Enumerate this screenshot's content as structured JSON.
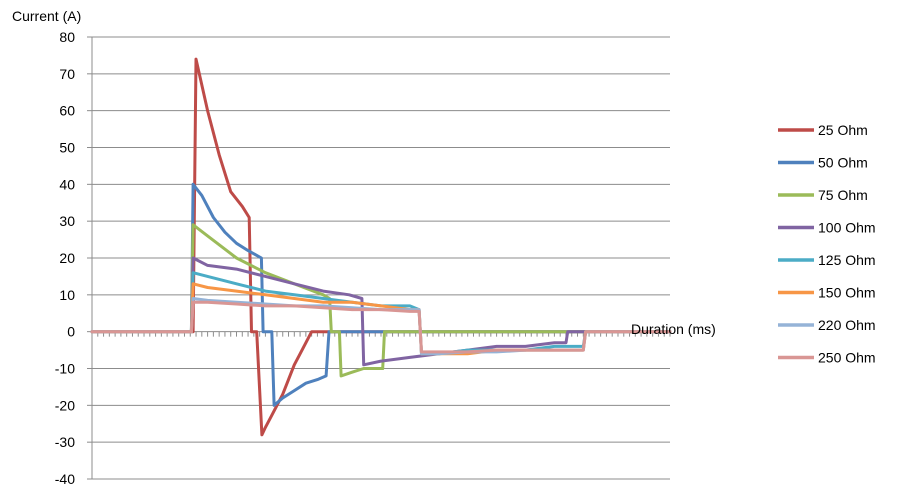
{
  "chart_data": {
    "type": "line",
    "ylabel": "Current (A)",
    "xlabel": "Duration (ms)",
    "xlim": [
      0,
      100
    ],
    "ylim": [
      -40,
      80
    ],
    "yticks": [
      80,
      70,
      60,
      50,
      40,
      30,
      20,
      10,
      0,
      -10,
      -20,
      -30,
      -40
    ],
    "grid": "horizontal",
    "legend": "right",
    "series": [
      {
        "name": "25 Ohm",
        "color": "#BE4B48",
        "x": [
          0,
          16.3,
          17.5,
          18.0,
          20,
          22,
          24,
          26,
          27.2,
          27.6,
          28.5,
          29.4,
          30.0,
          31,
          32,
          33,
          34,
          35,
          36,
          37,
          38,
          100
        ],
        "y": [
          0,
          0,
          0,
          74,
          60,
          48,
          38,
          34,
          31,
          0,
          0,
          -28,
          -26,
          -23,
          -20,
          -17,
          -13,
          -9,
          -6,
          -3,
          0,
          0
        ]
      },
      {
        "name": "50 Ohm",
        "color": "#4F81BD",
        "x": [
          0,
          16.3,
          17.2,
          17.5,
          19,
          21,
          23,
          25,
          27,
          29.3,
          29.6,
          31.1,
          31.5,
          33,
          35,
          37,
          39,
          40.5,
          41.0,
          100
        ],
        "y": [
          0,
          0,
          0,
          40,
          37,
          31,
          27,
          24,
          22,
          20,
          0,
          0,
          -20,
          -18,
          -16,
          -14,
          -13,
          -12,
          0,
          0
        ]
      },
      {
        "name": "75 Ohm",
        "color": "#9BBB59",
        "x": [
          0,
          16.3,
          17.2,
          17.5,
          20,
          25,
          30,
          35,
          40,
          41.1,
          41.4,
          42.8,
          43.1,
          45,
          47,
          49,
          50.3,
          50.6,
          100
        ],
        "y": [
          0,
          0,
          0,
          29,
          26,
          20,
          16,
          13,
          10,
          9,
          0,
          0,
          -12,
          -11,
          -10,
          -10,
          -10,
          0,
          0
        ]
      },
      {
        "name": "100 Ohm",
        "color": "#8064A2",
        "x": [
          0,
          16.3,
          17.2,
          17.5,
          20,
          25,
          30,
          35,
          40,
          44.5,
          46.7,
          47.0,
          50,
          55,
          60,
          65,
          70,
          75,
          80,
          82.0,
          82.3,
          100
        ],
        "y": [
          0,
          0,
          0,
          20,
          18,
          17,
          15,
          13,
          11,
          10,
          9,
          -9,
          -8,
          -7,
          -6,
          -5,
          -4,
          -4,
          -3,
          -3,
          0,
          0
        ]
      },
      {
        "name": "125 Ohm",
        "color": "#4BACC6",
        "x": [
          0,
          16.3,
          17.2,
          17.5,
          20,
          25,
          30,
          35,
          40,
          45,
          50,
          55,
          56.6,
          57.0,
          60,
          65,
          70,
          75,
          80,
          85,
          85.4,
          100
        ],
        "y": [
          0,
          0,
          0,
          16,
          15,
          13,
          11,
          10,
          9,
          8,
          7,
          7,
          6,
          -6,
          -6,
          -5,
          -5,
          -5,
          -4,
          -4,
          0,
          0
        ]
      },
      {
        "name": "150 Ohm",
        "color": "#F79646",
        "x": [
          0,
          16.3,
          17.2,
          17.5,
          20,
          25,
          30,
          35,
          40,
          45,
          50,
          55,
          56.6,
          57.0,
          60,
          65,
          70,
          75,
          80,
          85,
          85.4,
          100
        ],
        "y": [
          0,
          0,
          0,
          13,
          12,
          11,
          10,
          9,
          8,
          8,
          7,
          6,
          6,
          -6,
          -6,
          -6,
          -5,
          -5,
          -5,
          -5,
          0,
          0
        ]
      },
      {
        "name": "220 Ohm",
        "color": "#95B3D7",
        "x": [
          0,
          16.3,
          17.2,
          17.5,
          20,
          25,
          30,
          35,
          40,
          45,
          50,
          55,
          56.6,
          57.0,
          60,
          65,
          70,
          75,
          80,
          85,
          85.4,
          100
        ],
        "y": [
          0,
          0,
          0,
          9,
          8.5,
          8,
          7.5,
          7,
          7,
          6.5,
          6,
          6,
          6,
          -6,
          -6,
          -5.5,
          -5.5,
          -5,
          -5,
          -5,
          0,
          0
        ]
      },
      {
        "name": "250 Ohm",
        "color": "#D99694",
        "x": [
          0,
          16.3,
          17.2,
          17.5,
          20,
          25,
          30,
          35,
          40,
          45,
          50,
          55,
          56.6,
          57.0,
          60,
          65,
          70,
          75,
          80,
          85,
          85.4,
          100
        ],
        "y": [
          0,
          0,
          0,
          8,
          8,
          7.5,
          7,
          7,
          6.5,
          6,
          6,
          5.5,
          5.5,
          -5.5,
          -5.5,
          -5.5,
          -5,
          -5,
          -5,
          -5,
          0,
          0
        ]
      }
    ]
  }
}
